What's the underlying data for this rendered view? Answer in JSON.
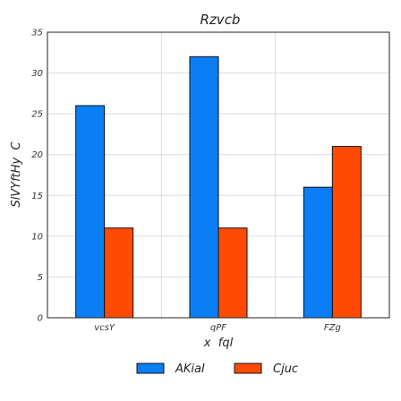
{
  "chart_data": {
    "type": "bar",
    "title": "Rzvcb",
    "xlabel": "x  fql",
    "ylabel": "SlVYftHy  C",
    "categories": [
      "vcsY",
      "qPF",
      "FZg"
    ],
    "series": [
      {
        "name": "AKiaI",
        "color": "#0a7ff5",
        "values": [
          26,
          32,
          16
        ]
      },
      {
        "name": "Cjuc",
        "color": "#fe4a04",
        "values": [
          11,
          11,
          21
        ]
      }
    ],
    "ylim": [
      0,
      35
    ],
    "yticks": [
      0,
      5,
      10,
      15,
      20,
      25,
      30,
      35
    ],
    "grid": true,
    "legend_position": "bottom"
  }
}
